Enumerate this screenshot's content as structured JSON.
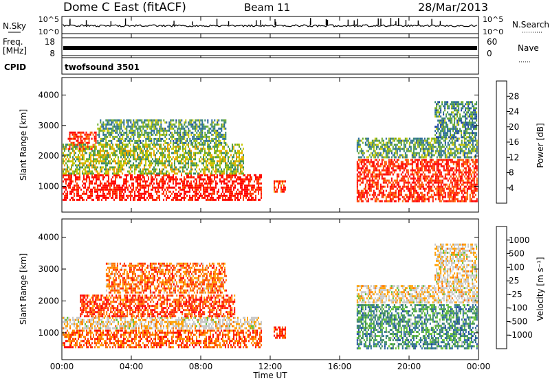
{
  "header": {
    "title": "Dome C East (fitACF)",
    "beam": "Beam 11",
    "date": "28/Mar/2013"
  },
  "top_panels": {
    "nsky_label": "N.Sky",
    "nsky_ticks": [
      "10^5",
      "10^0"
    ],
    "nsearch_label": "N.Search",
    "nsearch_ticks": [
      "10^5",
      "10^0"
    ],
    "freq_label": "Freq.",
    "freq_unit": "[MHz]",
    "freq_ticks": [
      "18",
      "8"
    ],
    "nave_label": "Nave",
    "nave_ticks": [
      "60",
      "0"
    ],
    "cpid_label": "CPID",
    "cpid_text": "twofsound 3501"
  },
  "axes": {
    "y_label": "Slant Range [km]",
    "y_ticks": [
      "4000",
      "3000",
      "2000",
      "1000"
    ],
    "x_label": "Time UT",
    "x_ticks": [
      "00:00",
      "04:00",
      "08:00",
      "12:00",
      "16:00",
      "20:00",
      "00:00"
    ]
  },
  "power_scale": {
    "label": "Power [dB]",
    "ticks": [
      "28",
      "24",
      "20",
      "16",
      "12",
      "8",
      "4"
    ],
    "colors": [
      "#0000ff",
      "#1a3fa0",
      "#2a6a9a",
      "#3a8a6a",
      "#6aaa2a",
      "#c8c800",
      "#f0a000",
      "#ff7000",
      "#ff4000",
      "#ff1000",
      "#ff0000"
    ]
  },
  "velocity_scale": {
    "label": "Velocity [m s⁻¹]",
    "ticks": [
      "1000",
      "500",
      "100",
      "25",
      "-25",
      "-100",
      "-500",
      "-1000"
    ],
    "colors": [
      "#ff0000",
      "#ff3000",
      "#ff7000",
      "#ffa000",
      "#c8c8c8",
      "#c8c8c8",
      "#60c030",
      "#3a8a5a",
      "#2a6a9a",
      "#1a3fa0"
    ]
  },
  "chart_data": [
    {
      "type": "heatmap",
      "title": "",
      "ylabel": "Slant Range [km]",
      "xlabel": "Time UT",
      "colorbar": "Power [dB]",
      "x_range_hours": [
        0,
        24
      ],
      "y_range_km": [
        180,
        4550
      ],
      "blobs": [
        {
          "t0": 0.0,
          "t1": 11.5,
          "r0": 500,
          "r1": 1400,
          "level": 0.9
        },
        {
          "t0": 0.3,
          "t1": 2.0,
          "r0": 2200,
          "r1": 2800,
          "level": 0.85
        },
        {
          "t0": 0.0,
          "t1": 10.5,
          "r0": 1400,
          "r1": 2400,
          "level": 0.45
        },
        {
          "t0": 2.0,
          "t1": 9.5,
          "r0": 2400,
          "r1": 3200,
          "level": 0.35
        },
        {
          "t0": 12.2,
          "t1": 12.9,
          "r0": 800,
          "r1": 1200,
          "level": 0.8
        },
        {
          "t0": 17.0,
          "t1": 24.0,
          "r0": 500,
          "r1": 1900,
          "level": 0.85
        },
        {
          "t0": 17.0,
          "t1": 24.0,
          "r0": 1900,
          "r1": 2600,
          "level": 0.35
        },
        {
          "t0": 21.5,
          "t1": 24.0,
          "r0": 2600,
          "r1": 3800,
          "level": 0.3
        }
      ]
    },
    {
      "type": "heatmap",
      "title": "",
      "ylabel": "Slant Range [km]",
      "xlabel": "Time UT",
      "colorbar": "Velocity [m s⁻¹]",
      "x_range_hours": [
        0,
        24
      ],
      "y_range_km": [
        180,
        4550
      ],
      "blobs": [
        {
          "t0": 0.0,
          "t1": 11.5,
          "r0": 500,
          "r1": 1100,
          "level": 0.2
        },
        {
          "t0": 0.0,
          "t1": 11.5,
          "r0": 1100,
          "r1": 1500,
          "level": 0.45
        },
        {
          "t0": 1.0,
          "t1": 10.0,
          "r0": 1500,
          "r1": 2200,
          "level": 0.15
        },
        {
          "t0": 2.5,
          "t1": 9.5,
          "r0": 2200,
          "r1": 3200,
          "level": 0.25
        },
        {
          "t0": 12.2,
          "t1": 12.9,
          "r0": 800,
          "r1": 1200,
          "level": 0.15
        },
        {
          "t0": 17.0,
          "t1": 24.0,
          "r0": 500,
          "r1": 1900,
          "level": 0.75
        },
        {
          "t0": 17.0,
          "t1": 24.0,
          "r0": 1900,
          "r1": 2500,
          "level": 0.45
        },
        {
          "t0": 21.5,
          "t1": 24.0,
          "r0": 2500,
          "r1": 3800,
          "level": 0.45
        }
      ]
    }
  ]
}
